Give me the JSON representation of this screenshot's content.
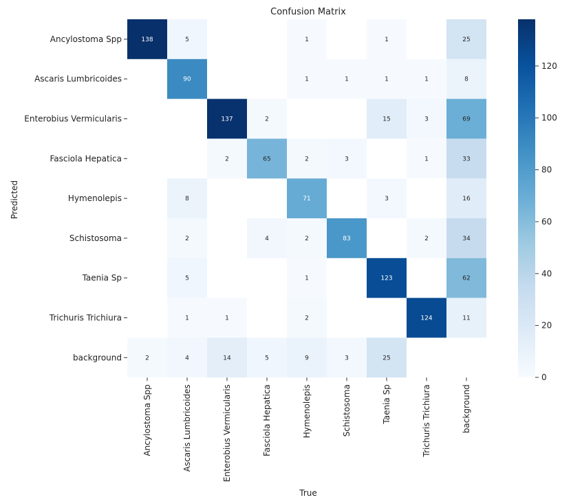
{
  "chart_data": {
    "type": "heatmap",
    "title": "Confusion Matrix",
    "xlabel": "True",
    "ylabel": "Predicted",
    "x_categories": [
      "Ancylostoma Spp",
      "Ascaris Lumbricoides",
      "Enterobius Vermicularis",
      "Fasciola Hepatica",
      "Hymenolepis",
      "Schistosoma",
      "Taenia Sp",
      "Trichuris Trichiura",
      "background"
    ],
    "y_categories": [
      "Ancylostoma Spp",
      "Ascaris Lumbricoides",
      "Enterobius Vermicularis",
      "Fasciola Hepatica",
      "Hymenolepis",
      "Schistosoma",
      "Taenia Sp",
      "Trichuris Trichiura",
      "background"
    ],
    "values": [
      [
        138,
        5,
        null,
        null,
        1,
        null,
        1,
        null,
        25
      ],
      [
        null,
        90,
        null,
        null,
        1,
        1,
        1,
        1,
        8
      ],
      [
        null,
        null,
        137,
        2,
        null,
        null,
        15,
        3,
        69
      ],
      [
        null,
        null,
        2,
        65,
        2,
        3,
        null,
        1,
        33
      ],
      [
        null,
        8,
        null,
        null,
        71,
        null,
        3,
        null,
        16
      ],
      [
        null,
        2,
        null,
        4,
        2,
        83,
        null,
        2,
        34
      ],
      [
        null,
        5,
        null,
        null,
        1,
        null,
        123,
        null,
        62
      ],
      [
        null,
        1,
        1,
        null,
        2,
        null,
        null,
        124,
        11
      ],
      [
        2,
        4,
        14,
        5,
        9,
        3,
        25,
        null,
        null
      ]
    ],
    "colorbar": {
      "min": 0,
      "max": 138,
      "ticks": [
        0,
        20,
        40,
        60,
        80,
        100,
        120
      ]
    },
    "colormap": "Blues"
  }
}
